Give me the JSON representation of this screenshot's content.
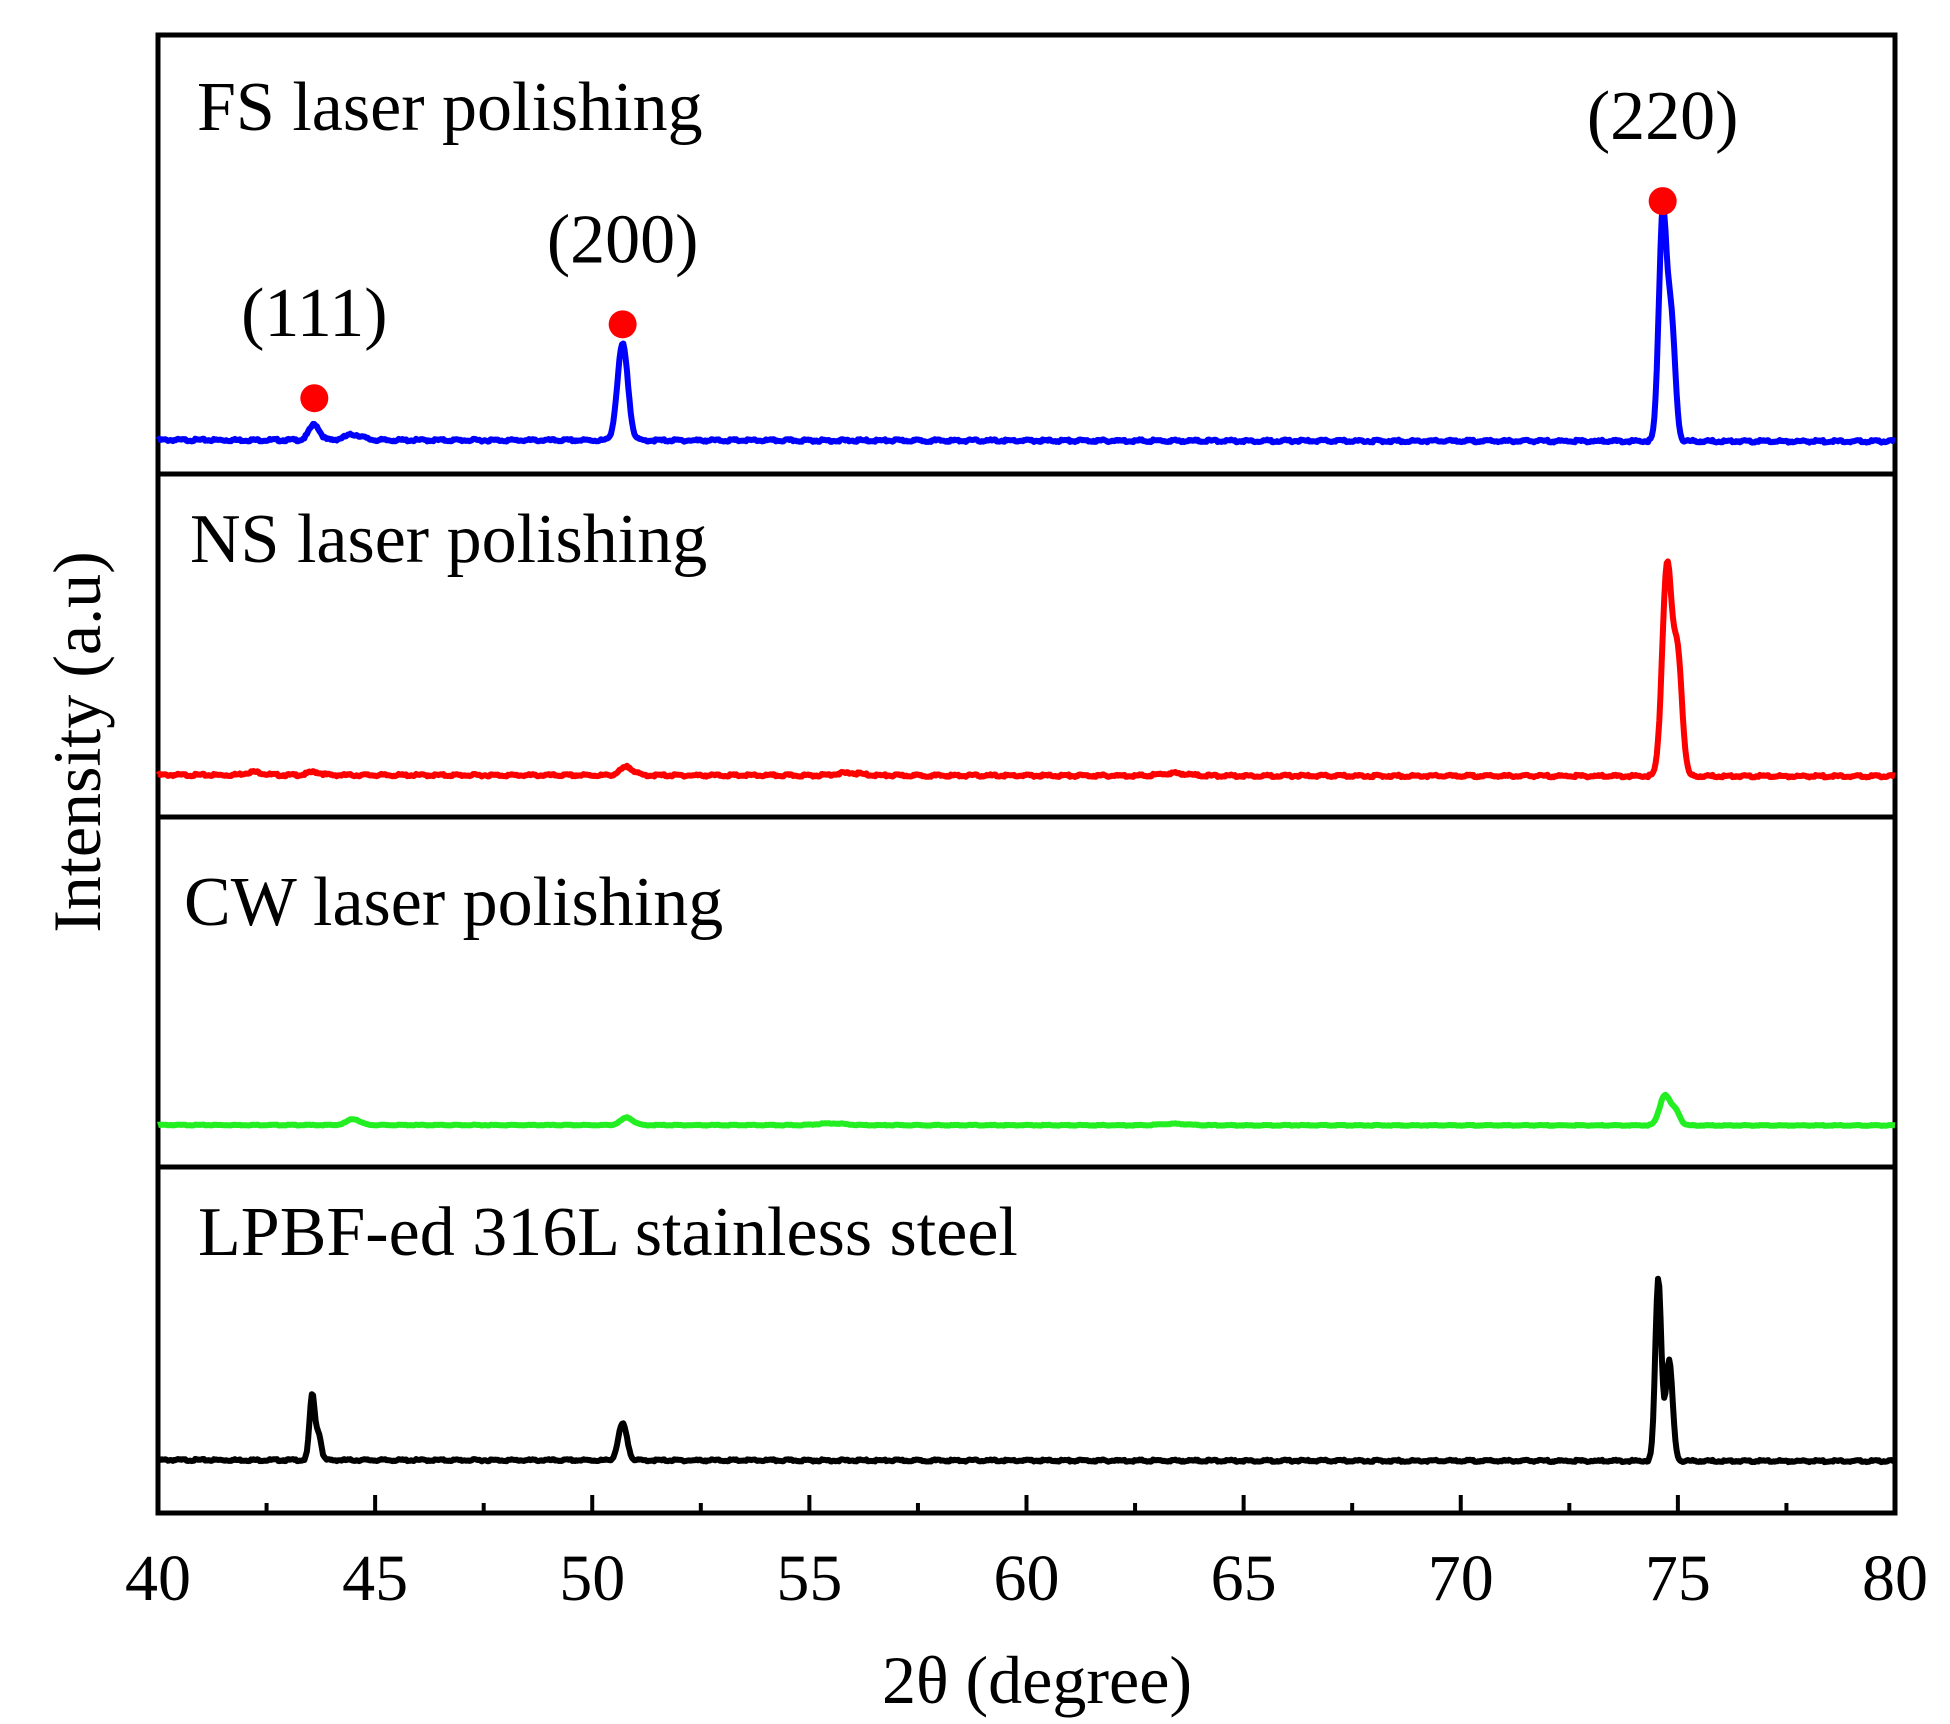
{
  "chart_data": {
    "type": "line",
    "xlabel": "2θ (degree)",
    "ylabel": "Intensity (a.u)",
    "xlim": [
      40,
      80
    ],
    "xticks": [
      "40",
      "45",
      "50",
      "55",
      "60",
      "65",
      "70",
      "75",
      "80"
    ],
    "grid": false,
    "legend": "none",
    "panels": [
      {
        "title": "FS laser polishing",
        "color": "#0000ff",
        "baseline": 0.03,
        "ymax": 1.0,
        "peaks": [
          {
            "center": 43.6,
            "height": 0.07,
            "width": 0.12
          },
          {
            "center": 44.5,
            "height": 0.025,
            "width": 0.2
          },
          {
            "center": 50.7,
            "height": 0.43,
            "width": 0.12
          },
          {
            "center": 74.65,
            "height": 1.0,
            "width": 0.09
          },
          {
            "center": 74.85,
            "height": 0.52,
            "width": 0.09
          }
        ],
        "annotations": [
          {
            "label": "(111)",
            "x": 43.6,
            "y": 0.24,
            "marker_color": "#ff0000"
          },
          {
            "label": "(200)",
            "x": 50.7,
            "y": 0.57,
            "marker_color": "#ff0000"
          },
          {
            "label": "(220)",
            "x": 74.65,
            "y": 1.12,
            "marker_color": "#ff0000"
          }
        ]
      },
      {
        "title": "NS laser polishing",
        "color": "#ff0000",
        "baseline": 0.02,
        "ymax": 1.0,
        "peaks": [
          {
            "center": 42.2,
            "height": 0.015,
            "width": 0.2
          },
          {
            "center": 43.6,
            "height": 0.015,
            "width": 0.15
          },
          {
            "center": 50.8,
            "height": 0.04,
            "width": 0.15
          },
          {
            "center": 55.9,
            "height": 0.012,
            "width": 0.3
          },
          {
            "center": 63.4,
            "height": 0.012,
            "width": 0.3
          },
          {
            "center": 74.75,
            "height": 1.0,
            "width": 0.11
          },
          {
            "center": 75.0,
            "height": 0.55,
            "width": 0.1
          }
        ],
        "annotations": []
      },
      {
        "title": "CW laser polishing",
        "color": "#22ee22",
        "baseline": 0.02,
        "ymax": 1.0,
        "peaks": [
          {
            "center": 44.5,
            "height": 0.08,
            "width": 0.15
          },
          {
            "center": 50.8,
            "height": 0.1,
            "width": 0.14
          },
          {
            "center": 55.5,
            "height": 0.025,
            "width": 0.3
          },
          {
            "center": 63.4,
            "height": 0.02,
            "width": 0.3
          },
          {
            "center": 74.7,
            "height": 0.4,
            "width": 0.12
          },
          {
            "center": 74.95,
            "height": 0.18,
            "width": 0.1
          }
        ],
        "annotations": []
      },
      {
        "title": "LPBF-ed 316L stainless steel",
        "color": "#000000",
        "baseline": 0.02,
        "ymax": 1.0,
        "peaks": [
          {
            "center": 43.55,
            "height": 0.36,
            "width": 0.06
          },
          {
            "center": 43.7,
            "height": 0.14,
            "width": 0.06
          },
          {
            "center": 50.7,
            "height": 0.2,
            "width": 0.1
          },
          {
            "center": 74.55,
            "height": 1.0,
            "width": 0.07
          },
          {
            "center": 74.8,
            "height": 0.55,
            "width": 0.08
          }
        ],
        "annotations": []
      }
    ]
  }
}
